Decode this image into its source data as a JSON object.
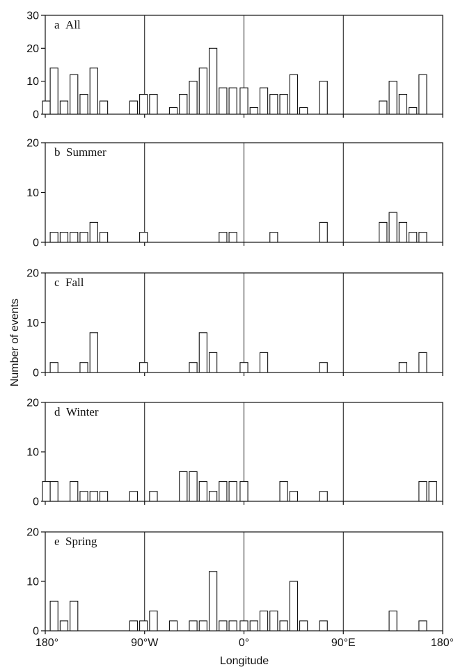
{
  "chart_data": {
    "type": "bar",
    "xlabel": "Longitude",
    "ylabel": "Number of events",
    "x_range": [
      -180,
      180
    ],
    "x_ticks": [
      {
        "value": -180,
        "label": "180°"
      },
      {
        "value": -90,
        "label": "90°W"
      },
      {
        "value": 0,
        "label": "0°"
      },
      {
        "value": 90,
        "label": "90°E"
      },
      {
        "value": 180,
        "label": "180°"
      }
    ],
    "bin_width_deg": 9,
    "vertical_lines": [
      -90,
      0,
      90
    ],
    "panels": [
      {
        "label": "a All",
        "ylim": [
          0,
          30
        ],
        "y_ticks": [
          "0",
          "10",
          "20",
          "30"
        ],
        "y_tick_values": [
          0,
          10,
          20,
          30
        ],
        "bars": [
          {
            "x": -179,
            "y": 4
          },
          {
            "x": -172,
            "y": 14
          },
          {
            "x": -163,
            "y": 4
          },
          {
            "x": -154,
            "y": 12
          },
          {
            "x": -145,
            "y": 6
          },
          {
            "x": -136,
            "y": 14
          },
          {
            "x": -127,
            "y": 4
          },
          {
            "x": -100,
            "y": 4
          },
          {
            "x": -91,
            "y": 6
          },
          {
            "x": -82,
            "y": 6
          },
          {
            "x": -64,
            "y": 2
          },
          {
            "x": -55,
            "y": 6
          },
          {
            "x": -46,
            "y": 10
          },
          {
            "x": -37,
            "y": 14
          },
          {
            "x": -28,
            "y": 20
          },
          {
            "x": -19,
            "y": 8
          },
          {
            "x": -10,
            "y": 8
          },
          {
            "x": 0,
            "y": 8
          },
          {
            "x": 9,
            "y": 2
          },
          {
            "x": 18,
            "y": 8
          },
          {
            "x": 27,
            "y": 6
          },
          {
            "x": 36,
            "y": 6
          },
          {
            "x": 45,
            "y": 12
          },
          {
            "x": 54,
            "y": 2
          },
          {
            "x": 72,
            "y": 10
          },
          {
            "x": 126,
            "y": 4
          },
          {
            "x": 135,
            "y": 10
          },
          {
            "x": 144,
            "y": 6
          },
          {
            "x": 153,
            "y": 2
          },
          {
            "x": 162,
            "y": 12
          }
        ]
      },
      {
        "label": "b Summer",
        "ylim": [
          0,
          20
        ],
        "y_ticks": [
          "0",
          "10",
          "20"
        ],
        "y_tick_values": [
          0,
          10,
          20
        ],
        "bars": [
          {
            "x": -172,
            "y": 2
          },
          {
            "x": -163,
            "y": 2
          },
          {
            "x": -154,
            "y": 2
          },
          {
            "x": -145,
            "y": 2
          },
          {
            "x": -136,
            "y": 4
          },
          {
            "x": -127,
            "y": 2
          },
          {
            "x": -91,
            "y": 2
          },
          {
            "x": -19,
            "y": 2
          },
          {
            "x": -10,
            "y": 2
          },
          {
            "x": 27,
            "y": 2
          },
          {
            "x": 72,
            "y": 4
          },
          {
            "x": 126,
            "y": 4
          },
          {
            "x": 135,
            "y": 6
          },
          {
            "x": 144,
            "y": 4
          },
          {
            "x": 153,
            "y": 2
          },
          {
            "x": 162,
            "y": 2
          }
        ]
      },
      {
        "label": "c Fall",
        "ylim": [
          0,
          20
        ],
        "y_ticks": [
          "0",
          "10",
          "20"
        ],
        "y_tick_values": [
          0,
          10,
          20
        ],
        "bars": [
          {
            "x": -172,
            "y": 2
          },
          {
            "x": -145,
            "y": 2
          },
          {
            "x": -136,
            "y": 8
          },
          {
            "x": -91,
            "y": 2
          },
          {
            "x": -46,
            "y": 2
          },
          {
            "x": -37,
            "y": 8
          },
          {
            "x": -28,
            "y": 4
          },
          {
            "x": 0,
            "y": 2
          },
          {
            "x": 18,
            "y": 4
          },
          {
            "x": 72,
            "y": 2
          },
          {
            "x": 144,
            "y": 2
          },
          {
            "x": 162,
            "y": 4
          }
        ]
      },
      {
        "label": "d Winter",
        "ylim": [
          0,
          20
        ],
        "y_ticks": [
          "0",
          "10",
          "20"
        ],
        "y_tick_values": [
          0,
          10,
          20
        ],
        "bars": [
          {
            "x": -179,
            "y": 4
          },
          {
            "x": -172,
            "y": 4
          },
          {
            "x": -154,
            "y": 4
          },
          {
            "x": -145,
            "y": 2
          },
          {
            "x": -136,
            "y": 2
          },
          {
            "x": -127,
            "y": 2
          },
          {
            "x": -100,
            "y": 2
          },
          {
            "x": -82,
            "y": 2
          },
          {
            "x": -55,
            "y": 6
          },
          {
            "x": -46,
            "y": 6
          },
          {
            "x": -37,
            "y": 4
          },
          {
            "x": -28,
            "y": 2
          },
          {
            "x": -19,
            "y": 4
          },
          {
            "x": -10,
            "y": 4
          },
          {
            "x": 0,
            "y": 4
          },
          {
            "x": 36,
            "y": 4
          },
          {
            "x": 45,
            "y": 2
          },
          {
            "x": 72,
            "y": 2
          },
          {
            "x": 162,
            "y": 4
          },
          {
            "x": 171,
            "y": 4
          }
        ]
      },
      {
        "label": "e Spring",
        "ylim": [
          0,
          20
        ],
        "y_ticks": [
          "0",
          "10",
          "20"
        ],
        "y_tick_values": [
          0,
          10,
          20
        ],
        "bars": [
          {
            "x": -172,
            "y": 6
          },
          {
            "x": -163,
            "y": 2
          },
          {
            "x": -154,
            "y": 6
          },
          {
            "x": -100,
            "y": 2
          },
          {
            "x": -91,
            "y": 2
          },
          {
            "x": -82,
            "y": 4
          },
          {
            "x": -64,
            "y": 2
          },
          {
            "x": -46,
            "y": 2
          },
          {
            "x": -37,
            "y": 2
          },
          {
            "x": -28,
            "y": 12
          },
          {
            "x": -19,
            "y": 2
          },
          {
            "x": -10,
            "y": 2
          },
          {
            "x": 0,
            "y": 2
          },
          {
            "x": 9,
            "y": 2
          },
          {
            "x": 18,
            "y": 4
          },
          {
            "x": 27,
            "y": 4
          },
          {
            "x": 36,
            "y": 2
          },
          {
            "x": 45,
            "y": 10
          },
          {
            "x": 54,
            "y": 2
          },
          {
            "x": 72,
            "y": 2
          },
          {
            "x": 135,
            "y": 4
          },
          {
            "x": 162,
            "y": 2
          }
        ]
      }
    ]
  }
}
